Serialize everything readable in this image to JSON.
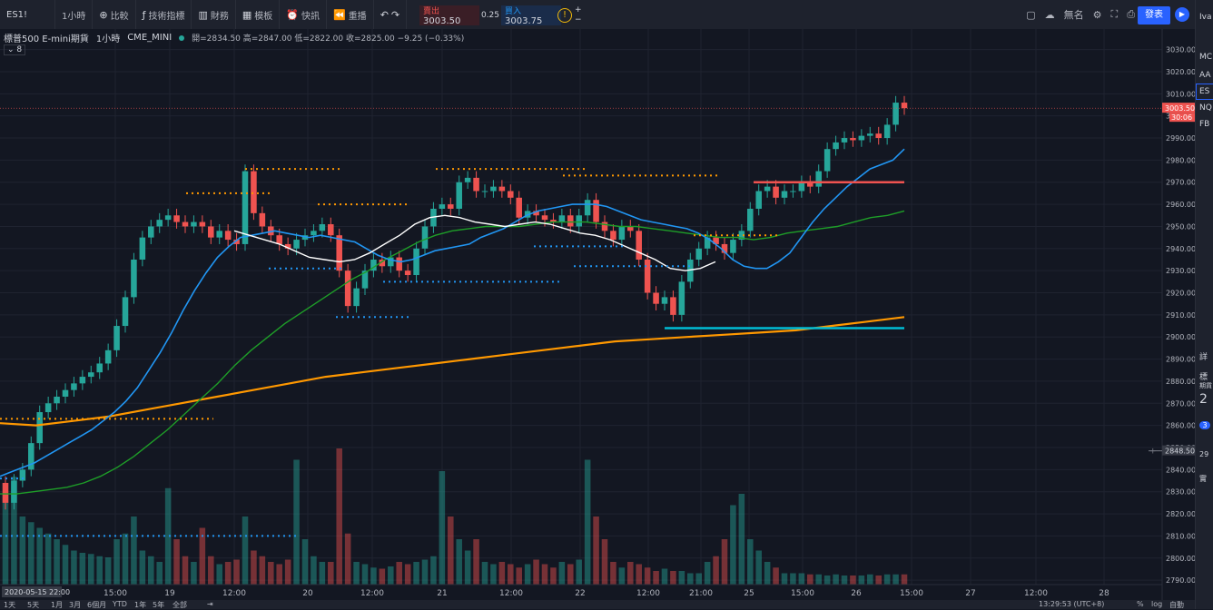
{
  "toolbar": {
    "symbol": "ES1!",
    "interval": "1小時",
    "compare": "比較",
    "indicators": "技術指標",
    "financials": "財務",
    "templates": "模板",
    "alert": "快訊",
    "replay": "重播",
    "publish": "發表",
    "layout_name": "無名"
  },
  "trade": {
    "sell_label": "賣出",
    "sell_price": "3003.50",
    "spread": "0.25",
    "buy_label": "買入",
    "buy_price": "3003.75"
  },
  "legend": {
    "title": "標普500 E-mini期貨",
    "interval": "1小時",
    "exchange": "CME_MINI",
    "ohlc": "開=2834.50 高=2847.00 低=2822.00 收=2825.00 −9.25 (−0.33%)",
    "collapse": "8"
  },
  "watchlist": {
    "header": "Iva",
    "items": [
      "MC",
      "AA",
      "ES",
      "NQ",
      "FB"
    ],
    "detail_label": "詳",
    "detail_sym": "標",
    "detail_sub": "期貨",
    "detail_price": "2",
    "detail_badge": "3",
    "detail_val": "29",
    "detail_foot": "實"
  },
  "bottom": {
    "ranges": [
      "1天",
      "5天",
      "1月",
      "3月",
      "6個月",
      "YTD",
      "1年",
      "5年",
      "全部"
    ],
    "time": "13:29:53 (UTC+8)",
    "pct": "%",
    "log": "log",
    "auto": "自動"
  },
  "colors": {
    "up": "#26a69a",
    "down": "#ef5350",
    "ma_fast": "#2196f3",
    "ma_mid": "#1e9e28",
    "ma_slow": "#ff9800",
    "ma_short": "#ffffff",
    "support": "#00bcd4",
    "resistance": "#ef5350"
  },
  "chart_data": {
    "type": "line",
    "title": "標普500 E-mini期貨",
    "xlabel": "",
    "ylabel": "",
    "ylim": [
      2788,
      3036
    ],
    "grid": true,
    "y_ticks": [
      2790,
      2800,
      2810,
      2820,
      2830,
      2840,
      2850,
      2860,
      2870,
      2880,
      2890,
      2900,
      2910,
      2920,
      2930,
      2940,
      2950,
      2960,
      2970,
      2980,
      2990,
      3000,
      3010,
      3020,
      3030
    ],
    "x_ticks": [
      "15:00",
      "19",
      "12:00",
      "20",
      "12:00",
      "21",
      "12:00",
      "22",
      "12:00",
      "21:00",
      "25",
      "15:00",
      "26",
      "15:00",
      "27",
      "12:00",
      "28"
    ],
    "cursor_date_label": "2020-05-15 22:00",
    "last_price_label": "3003.50",
    "countdown_label": "30:06",
    "crosshair_price_label": "2848.50",
    "close_series": [
      2825,
      2835,
      2840,
      2852,
      2866,
      2870,
      2873,
      2876,
      2879,
      2882,
      2884,
      2888,
      2894,
      2905,
      2918,
      2935,
      2945,
      2950,
      2953,
      2955,
      2952,
      2950,
      2952,
      2950,
      2945,
      2948,
      2944,
      2942,
      2975,
      2956,
      2950,
      2946,
      2942,
      2940,
      2944,
      2946,
      2948,
      2951,
      2946,
      2930,
      2914,
      2922,
      2930,
      2935,
      2932,
      2936,
      2930,
      2928,
      2940,
      2950,
      2958,
      2960,
      2958,
      2970,
      2972,
      2966,
      2966,
      2968,
      2966,
      2963,
      2954,
      2957,
      2955,
      2953,
      2952,
      2955,
      2950,
      2955,
      2962,
      2952,
      2948,
      2944,
      2950,
      2948,
      2935,
      2920,
      2915,
      2918,
      2910,
      2925,
      2935,
      2940,
      2945,
      2942,
      2938,
      2944,
      2948,
      2958,
      2966,
      2968,
      2963,
      2966,
      2966,
      2970,
      2968,
      2975,
      2985,
      2988,
      2990,
      2989,
      2991,
      2992,
      2990,
      2996,
      3006,
      3003.5
    ],
    "volume": [
      80,
      95,
      60,
      55,
      50,
      45,
      40,
      35,
      30,
      28,
      27,
      25,
      24,
      40,
      45,
      60,
      30,
      25,
      20,
      85,
      40,
      25,
      20,
      50,
      25,
      18,
      20,
      22,
      60,
      30,
      25,
      20,
      18,
      22,
      110,
      40,
      25,
      20,
      20,
      120,
      45,
      20,
      18,
      15,
      14,
      16,
      20,
      18,
      20,
      22,
      25,
      100,
      60,
      40,
      30,
      40,
      20,
      18,
      20,
      18,
      15,
      18,
      22,
      18,
      15,
      20,
      18,
      22,
      110,
      60,
      40,
      20,
      15,
      20,
      18,
      15,
      12,
      14,
      12,
      12,
      10,
      10,
      20,
      25,
      40,
      70,
      80,
      40,
      30,
      20,
      15,
      10,
      10,
      10,
      9,
      9,
      8,
      9,
      8,
      8,
      8,
      9,
      8,
      9,
      9,
      9
    ],
    "ma_fast": [
      2837,
      2839,
      2841,
      2843,
      2846,
      2849,
      2852,
      2855,
      2858,
      2862,
      2866,
      2871,
      2877,
      2885,
      2893,
      2902,
      2912,
      2921,
      2929,
      2936,
      2941,
      2945,
      2946,
      2947,
      2948,
      2947,
      2946,
      2945,
      2946,
      2945,
      2944,
      2943,
      2940,
      2937,
      2935,
      2934,
      2935,
      2937,
      2939,
      2940,
      2941,
      2942,
      2945,
      2947,
      2949,
      2952,
      2955,
      2957,
      2958,
      2959,
      2960,
      2960,
      2960,
      2959,
      2957,
      2955,
      2953,
      2952,
      2951,
      2950,
      2949,
      2947,
      2944,
      2940,
      2935,
      2932,
      2931,
      2931,
      2934,
      2938,
      2945,
      2952,
      2958,
      2963,
      2968,
      2972,
      2976,
      2978,
      2980,
      2985
    ],
    "ma_mid": [
      2829,
      2829,
      2830,
      2831,
      2832,
      2834,
      2837,
      2841,
      2846,
      2852,
      2858,
      2865,
      2872,
      2879,
      2887,
      2894,
      2900,
      2906,
      2911,
      2916,
      2921,
      2926,
      2930,
      2935,
      2939,
      2943,
      2946,
      2948,
      2949,
      2950,
      2950,
      2950,
      2951,
      2952,
      2952,
      2952,
      2951,
      2950,
      2950,
      2949,
      2948,
      2947,
      2946,
      2945,
      2945,
      2944,
      2945,
      2947,
      2948,
      2949,
      2950,
      2952,
      2954,
      2955,
      2957
    ],
    "ma_slow": [
      2861,
      2860,
      2862,
      2864,
      2867,
      2870,
      2873,
      2876,
      2879,
      2882,
      2884,
      2886,
      2888,
      2890,
      2892,
      2894,
      2896,
      2898,
      2899,
      2900,
      2901,
      2902,
      2903,
      2905,
      2907,
      2909
    ],
    "ma_short": [
      2948,
      2946,
      2944,
      2942,
      2939,
      2936,
      2935,
      2934,
      2935,
      2938,
      2942,
      2946,
      2951,
      2954,
      2955,
      2954,
      2952,
      2951,
      2950,
      2951,
      2952,
      2951,
      2949,
      2947,
      2946,
      2944,
      2941,
      2938,
      2935,
      2931,
      2930,
      2931,
      2934
    ],
    "resistance_level": 2970,
    "support_level": 2904
  }
}
